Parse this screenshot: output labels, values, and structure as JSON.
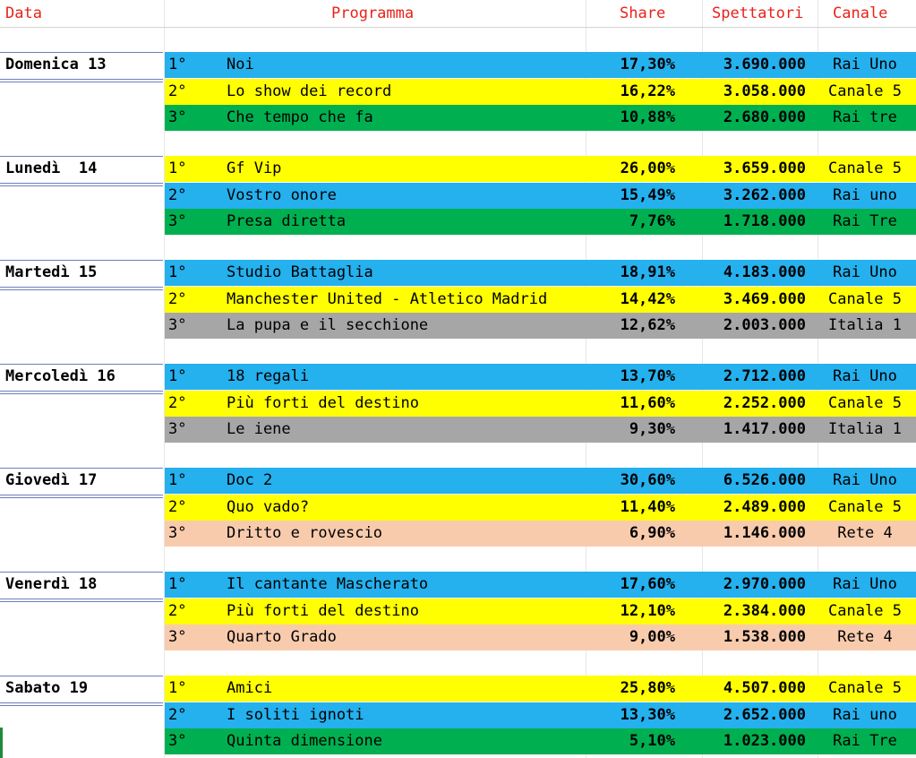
{
  "headers": {
    "data": "Data",
    "programma": "Programma",
    "share": "Share",
    "spettatori": "Spettatori",
    "canale": "Canale"
  },
  "colors": {
    "blue": "#25b0ee",
    "yellow": "#ffff00",
    "green": "#00b050",
    "gray": "#a6a6a6",
    "peach": "#f8cbad",
    "header_red": "#e8221a"
  },
  "days": [
    {
      "label": "Domenica 13",
      "rows": [
        {
          "rank": "1°",
          "programma": "Noi",
          "share": "17,30%",
          "spettatori": "3.690.000",
          "canale": "Rai Uno",
          "color": "blue"
        },
        {
          "rank": "2°",
          "programma": "Lo show dei record",
          "share": "16,22%",
          "spettatori": "3.058.000",
          "canale": "Canale 5",
          "color": "yellow"
        },
        {
          "rank": "3°",
          "programma": "Che tempo che fa",
          "share": "10,88%",
          "spettatori": "2.680.000",
          "canale": "Rai tre",
          "color": "green"
        }
      ]
    },
    {
      "label": "Lunedì  14",
      "rows": [
        {
          "rank": "1°",
          "programma": "Gf Vip",
          "share": "26,00%",
          "spettatori": "3.659.000",
          "canale": "Canale 5",
          "color": "yellow"
        },
        {
          "rank": "2°",
          "programma": "Vostro onore",
          "share": "15,49%",
          "spettatori": "3.262.000",
          "canale": "Rai uno",
          "color": "blue"
        },
        {
          "rank": "3°",
          "programma": "Presa diretta",
          "share": "7,76%",
          "spettatori": "1.718.000",
          "canale": "Rai Tre",
          "color": "green"
        }
      ]
    },
    {
      "label": "Martedì 15",
      "rows": [
        {
          "rank": "1°",
          "programma": "Studio Battaglia",
          "share": "18,91%",
          "spettatori": "4.183.000",
          "canale": "Rai Uno",
          "color": "blue"
        },
        {
          "rank": "2°",
          "programma": "Manchester United - Atletico Madrid",
          "share": "14,42%",
          "spettatori": "3.469.000",
          "canale": "Canale 5",
          "color": "yellow"
        },
        {
          "rank": "3°",
          "programma": "La pupa e il secchione",
          "share": "12,62%",
          "spettatori": "2.003.000",
          "canale": "Italia 1",
          "color": "gray"
        }
      ]
    },
    {
      "label": "Mercoledì 16",
      "rows": [
        {
          "rank": "1°",
          "programma": "18 regali",
          "share": "13,70%",
          "spettatori": "2.712.000",
          "canale": "Rai Uno",
          "color": "blue"
        },
        {
          "rank": "2°",
          "programma": "Più forti del destino",
          "share": "11,60%",
          "spettatori": "2.252.000",
          "canale": "Canale 5",
          "color": "yellow"
        },
        {
          "rank": "3°",
          "programma": "Le iene",
          "share": "9,30%",
          "spettatori": "1.417.000",
          "canale": "Italia 1",
          "color": "gray"
        }
      ]
    },
    {
      "label": "Giovedì 17",
      "rows": [
        {
          "rank": "1°",
          "programma": "Doc 2",
          "share": "30,60%",
          "spettatori": "6.526.000",
          "canale": "Rai Uno",
          "color": "blue"
        },
        {
          "rank": "2°",
          "programma": "Quo vado?",
          "share": "11,40%",
          "spettatori": "2.489.000",
          "canale": "Canale 5",
          "color": "yellow"
        },
        {
          "rank": "3°",
          "programma": "Dritto e rovescio",
          "share": "6,90%",
          "spettatori": "1.146.000",
          "canale": "Rete 4",
          "color": "peach"
        }
      ]
    },
    {
      "label": "Venerdì 18",
      "rows": [
        {
          "rank": "1°",
          "programma": "Il cantante Mascherato",
          "share": "17,60%",
          "spettatori": "2.970.000",
          "canale": "Rai Uno",
          "color": "blue"
        },
        {
          "rank": "2°",
          "programma": "Più forti del destino",
          "share": "12,10%",
          "spettatori": "2.384.000",
          "canale": "Canale 5",
          "color": "yellow"
        },
        {
          "rank": "3°",
          "programma": "Quarto Grado",
          "share": "9,00%",
          "spettatori": "1.538.000",
          "canale": "Rete 4",
          "color": "peach"
        }
      ]
    },
    {
      "label": "Sabato 19",
      "rows": [
        {
          "rank": "1°",
          "programma": "Amici",
          "share": "25,80%",
          "spettatori": "4.507.000",
          "canale": "Canale 5",
          "color": "yellow"
        },
        {
          "rank": "2°",
          "programma": "I soliti ignoti",
          "share": "13,30%",
          "spettatori": "2.652.000",
          "canale": "Rai uno",
          "color": "blue"
        },
        {
          "rank": "3°",
          "programma": "Quinta dimensione",
          "share": "5,10%",
          "spettatori": "1.023.000",
          "canale": "Rai Tre",
          "color": "green"
        }
      ]
    }
  ]
}
